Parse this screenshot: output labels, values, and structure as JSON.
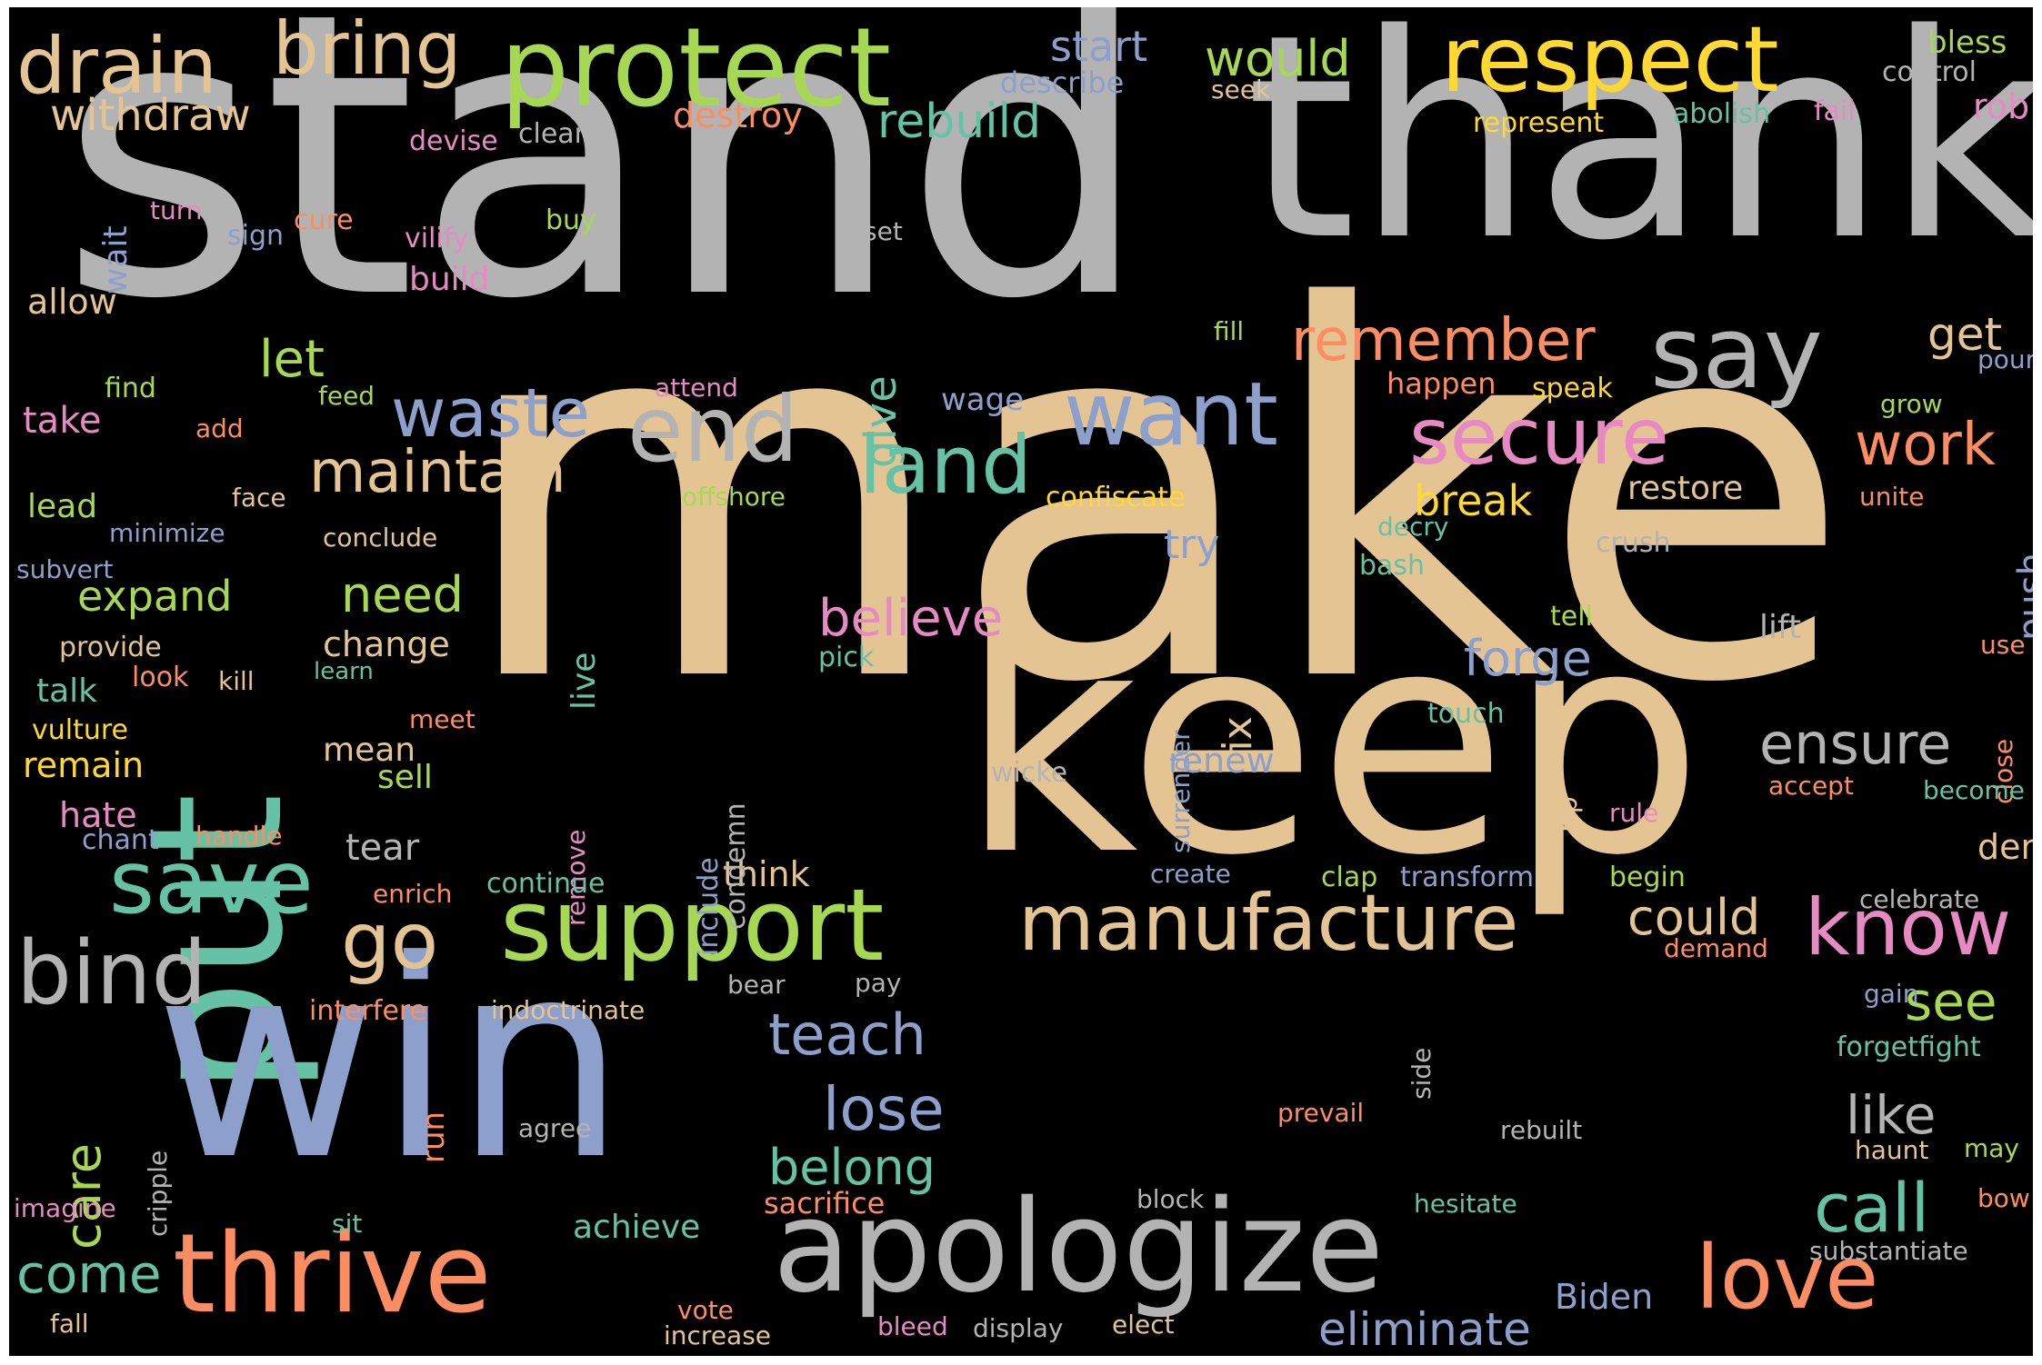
{
  "palette": {
    "gray": "#b3b3b3",
    "tan": "#e5c494",
    "blue": "#8da0cb",
    "teal": "#66c2a5",
    "green": "#a6d854",
    "orange": "#fc8d62",
    "yellow": "#ffd92f",
    "pink": "#e78ac3"
  },
  "words": [
    {
      "text": "stand",
      "color": "gray"
    },
    {
      "text": "thank",
      "color": "gray"
    },
    {
      "text": "make",
      "color": "tan"
    },
    {
      "text": "put",
      "color": "teal"
    },
    {
      "text": "keep",
      "color": "tan"
    },
    {
      "text": "win",
      "color": "blue"
    },
    {
      "text": "apologize",
      "color": "gray"
    },
    {
      "text": "thrive",
      "color": "orange"
    },
    {
      "text": "support",
      "color": "green"
    },
    {
      "text": "manufacture",
      "color": "tan"
    },
    {
      "text": "protect",
      "color": "green"
    },
    {
      "text": "respect",
      "color": "yellow"
    },
    {
      "text": "drain",
      "color": "tan"
    },
    {
      "text": "bring",
      "color": "tan"
    },
    {
      "text": "say",
      "color": "gray"
    },
    {
      "text": "end",
      "color": "gray"
    },
    {
      "text": "want",
      "color": "blue"
    },
    {
      "text": "secure",
      "color": "pink"
    },
    {
      "text": "land",
      "color": "teal"
    },
    {
      "text": "love",
      "color": "orange"
    },
    {
      "text": "know",
      "color": "pink"
    },
    {
      "text": "save",
      "color": "teal"
    },
    {
      "text": "bind",
      "color": "gray"
    },
    {
      "text": "go",
      "color": "tan"
    },
    {
      "text": "waste",
      "color": "blue"
    },
    {
      "text": "remember",
      "color": "orange"
    },
    {
      "text": "maintain",
      "color": "tan"
    },
    {
      "text": "work",
      "color": "orange"
    },
    {
      "text": "believe",
      "color": "pink"
    },
    {
      "text": "ensure",
      "color": "gray"
    },
    {
      "text": "call",
      "color": "teal"
    },
    {
      "text": "lose",
      "color": "blue"
    },
    {
      "text": "teach",
      "color": "blue"
    },
    {
      "text": "come",
      "color": "teal"
    },
    {
      "text": "eliminate",
      "color": "blue"
    },
    {
      "text": "like",
      "color": "gray"
    },
    {
      "text": "see",
      "color": "green"
    },
    {
      "text": "could",
      "color": "tan"
    },
    {
      "text": "belong",
      "color": "teal"
    },
    {
      "text": "care",
      "color": "green"
    },
    {
      "text": "forge",
      "color": "blue"
    },
    {
      "text": "withdraw",
      "color": "tan"
    },
    {
      "text": "rebuild",
      "color": "teal"
    },
    {
      "text": "would",
      "color": "green"
    },
    {
      "text": "start",
      "color": "blue"
    },
    {
      "text": "let",
      "color": "green"
    },
    {
      "text": "need",
      "color": "green"
    },
    {
      "text": "expand",
      "color": "green"
    },
    {
      "text": "give",
      "color": "teal"
    },
    {
      "text": "get",
      "color": "tan"
    },
    {
      "text": "break",
      "color": "yellow"
    },
    {
      "text": "try",
      "color": "blue"
    },
    {
      "text": "fix",
      "color": "tan"
    },
    {
      "text": "destroy",
      "color": "orange"
    },
    {
      "text": "bless",
      "color": "green"
    },
    {
      "text": "rob",
      "color": "pink"
    },
    {
      "text": "build",
      "color": "pink"
    },
    {
      "text": "take",
      "color": "pink"
    },
    {
      "text": "change",
      "color": "tan"
    },
    {
      "text": "restore",
      "color": "tan"
    },
    {
      "text": "tear",
      "color": "gray"
    },
    {
      "text": "renew",
      "color": "blue"
    },
    {
      "text": "think",
      "color": "tan"
    },
    {
      "text": "push",
      "color": "blue"
    },
    {
      "text": "lift",
      "color": "gray"
    },
    {
      "text": "Biden",
      "color": "blue"
    },
    {
      "text": "deny",
      "color": "tan"
    },
    {
      "text": "remain",
      "color": "yellow"
    },
    {
      "text": "mean",
      "color": "tan"
    },
    {
      "text": "sell",
      "color": "green"
    },
    {
      "text": "hate",
      "color": "pink"
    },
    {
      "text": "talk",
      "color": "teal"
    },
    {
      "text": "wage",
      "color": "blue"
    },
    {
      "text": "happen",
      "color": "orange"
    },
    {
      "text": "live",
      "color": "teal"
    },
    {
      "text": "run",
      "color": "orange"
    },
    {
      "text": "achieve",
      "color": "teal"
    },
    {
      "text": "sacrifice",
      "color": "orange"
    },
    {
      "text": "allow",
      "color": "tan"
    },
    {
      "text": "lead",
      "color": "green"
    },
    {
      "text": "wait",
      "color": "blue"
    },
    {
      "text": "describe",
      "color": "blue"
    },
    {
      "text": "control",
      "color": "gray"
    },
    {
      "text": "seek",
      "color": "tan"
    },
    {
      "text": "represent",
      "color": "yellow"
    },
    {
      "text": "abolish",
      "color": "teal"
    },
    {
      "text": "fail",
      "color": "pink"
    },
    {
      "text": "devise",
      "color": "pink"
    },
    {
      "text": "clean",
      "color": "gray"
    },
    {
      "text": "turn",
      "color": "pink"
    },
    {
      "text": "cure",
      "color": "orange"
    },
    {
      "text": "sign",
      "color": "blue"
    },
    {
      "text": "vilify",
      "color": "pink"
    },
    {
      "text": "buy",
      "color": "green"
    },
    {
      "text": "set",
      "color": "gray"
    },
    {
      "text": "fill",
      "color": "green"
    },
    {
      "text": "pour",
      "color": "blue"
    },
    {
      "text": "find",
      "color": "green"
    },
    {
      "text": "feed",
      "color": "green"
    },
    {
      "text": "attend",
      "color": "pink"
    },
    {
      "text": "speak",
      "color": "yellow"
    },
    {
      "text": "grow",
      "color": "green"
    },
    {
      "text": "add",
      "color": "orange"
    },
    {
      "text": "face",
      "color": "tan"
    },
    {
      "text": "offshore",
      "color": "green"
    },
    {
      "text": "confiscate",
      "color": "yellow"
    },
    {
      "text": "unite",
      "color": "orange"
    },
    {
      "text": "minimize",
      "color": "blue"
    },
    {
      "text": "conclude",
      "color": "tan"
    },
    {
      "text": "decry",
      "color": "teal"
    },
    {
      "text": "crush",
      "color": "gray"
    },
    {
      "text": "subvert",
      "color": "blue"
    },
    {
      "text": "bash",
      "color": "teal"
    },
    {
      "text": "provide",
      "color": "tan"
    },
    {
      "text": "pick",
      "color": "teal"
    },
    {
      "text": "tell",
      "color": "green"
    },
    {
      "text": "use",
      "color": "orange"
    },
    {
      "text": "look",
      "color": "orange"
    },
    {
      "text": "kill",
      "color": "tan"
    },
    {
      "text": "learn",
      "color": "teal"
    },
    {
      "text": "surrender",
      "color": "blue"
    },
    {
      "text": "close",
      "color": "orange"
    },
    {
      "text": "vulture",
      "color": "yellow"
    },
    {
      "text": "meet",
      "color": "orange"
    },
    {
      "text": "touch",
      "color": "teal"
    },
    {
      "text": "condemn",
      "color": "gray"
    },
    {
      "text": "include",
      "color": "blue"
    },
    {
      "text": "wicke",
      "color": "gray"
    },
    {
      "text": "rip",
      "color": "tan"
    },
    {
      "text": "accept",
      "color": "orange"
    },
    {
      "text": "become",
      "color": "teal"
    },
    {
      "text": "chant",
      "color": "blue"
    },
    {
      "text": "handle",
      "color": "orange"
    },
    {
      "text": "remove",
      "color": "pink"
    },
    {
      "text": "rule",
      "color": "pink"
    },
    {
      "text": "create",
      "color": "blue"
    },
    {
      "text": "clap",
      "color": "green"
    },
    {
      "text": "transform",
      "color": "blue"
    },
    {
      "text": "begin",
      "color": "green"
    },
    {
      "text": "enrich",
      "color": "orange"
    },
    {
      "text": "continue",
      "color": "teal"
    },
    {
      "text": "celebrate",
      "color": "gray"
    },
    {
      "text": "demand",
      "color": "orange"
    },
    {
      "text": "bear",
      "color": "gray"
    },
    {
      "text": "pay",
      "color": "gray"
    },
    {
      "text": "interfere",
      "color": "orange"
    },
    {
      "text": "indoctrinate",
      "color": "tan"
    },
    {
      "text": "side",
      "color": "gray"
    },
    {
      "text": "gain",
      "color": "blue"
    },
    {
      "text": "forgetfight",
      "color": "teal"
    },
    {
      "text": "cripple",
      "color": "gray"
    },
    {
      "text": "agree",
      "color": "gray"
    },
    {
      "text": "prevail",
      "color": "orange"
    },
    {
      "text": "rebuilt",
      "color": "gray"
    },
    {
      "text": "haunt",
      "color": "tan"
    },
    {
      "text": "may",
      "color": "green"
    },
    {
      "text": "imagine",
      "color": "pink"
    },
    {
      "text": "block",
      "color": "gray"
    },
    {
      "text": "hesitate",
      "color": "teal"
    },
    {
      "text": "bow",
      "color": "orange"
    },
    {
      "text": "sit",
      "color": "teal"
    },
    {
      "text": "substantiate",
      "color": "gray"
    },
    {
      "text": "fall",
      "color": "tan"
    },
    {
      "text": "vote",
      "color": "orange"
    },
    {
      "text": "increase",
      "color": "tan"
    },
    {
      "text": "bleed",
      "color": "pink"
    },
    {
      "text": "display",
      "color": "gray"
    },
    {
      "text": "elect",
      "color": "tan"
    }
  ]
}
